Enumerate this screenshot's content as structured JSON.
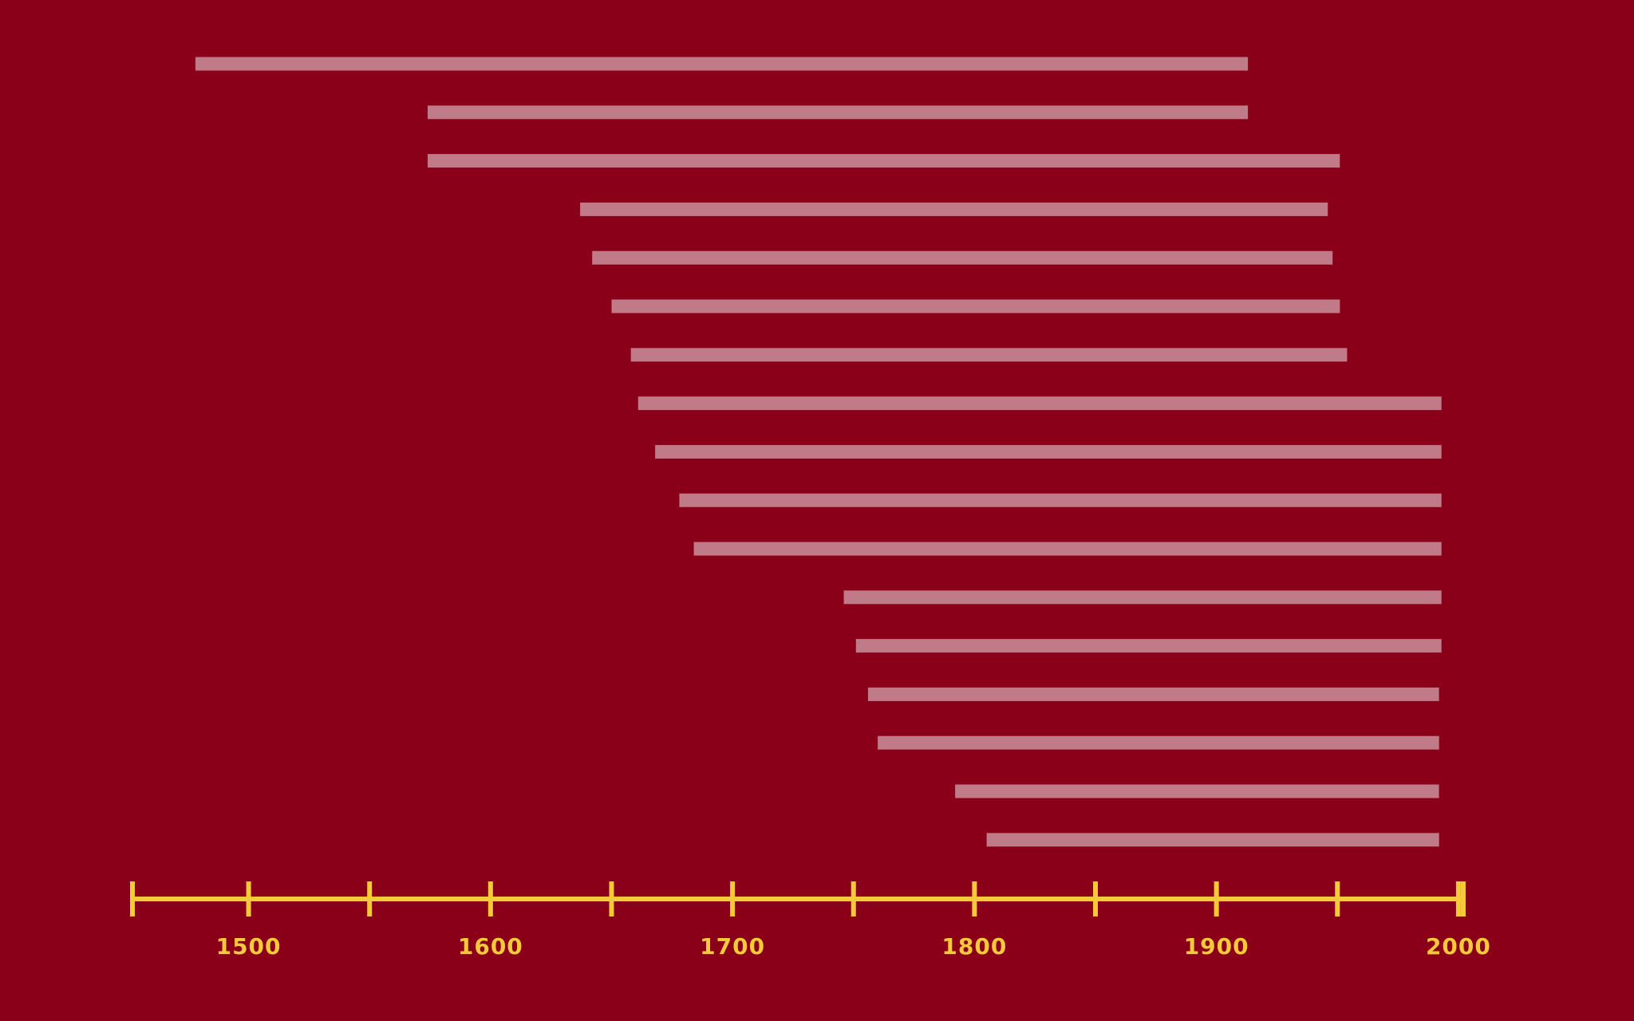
{
  "colors": {
    "background": "#8a0019",
    "bar": "#c07a88",
    "axis": "#f5c93a"
  },
  "chart_data": {
    "type": "timeline",
    "title": "",
    "xlabel": "",
    "ylabel": "",
    "x_unit": "year",
    "xlim": [
      1452,
      2002
    ],
    "x_ticks": [
      1500,
      1550,
      1600,
      1650,
      1700,
      1750,
      1800,
      1850,
      1900,
      1950,
      2000
    ],
    "x_tick_labels": [
      "1500",
      "1600",
      "1700",
      "1800",
      "1900",
      "2000"
    ],
    "grid": false,
    "legend": "none",
    "bars": [
      {
        "start": 1478,
        "end": 1913
      },
      {
        "start": 1574,
        "end": 1913
      },
      {
        "start": 1574,
        "end": 1951
      },
      {
        "start": 1637,
        "end": 1946
      },
      {
        "start": 1642,
        "end": 1948
      },
      {
        "start": 1650,
        "end": 1951
      },
      {
        "start": 1658,
        "end": 1954
      },
      {
        "start": 1661,
        "end": 1993
      },
      {
        "start": 1668,
        "end": 1993
      },
      {
        "start": 1678,
        "end": 1993
      },
      {
        "start": 1684,
        "end": 1993
      },
      {
        "start": 1746,
        "end": 1993
      },
      {
        "start": 1751,
        "end": 1993
      },
      {
        "start": 1756,
        "end": 1992
      },
      {
        "start": 1760,
        "end": 1992
      },
      {
        "start": 1792,
        "end": 1992
      },
      {
        "start": 1805,
        "end": 1992
      }
    ]
  }
}
